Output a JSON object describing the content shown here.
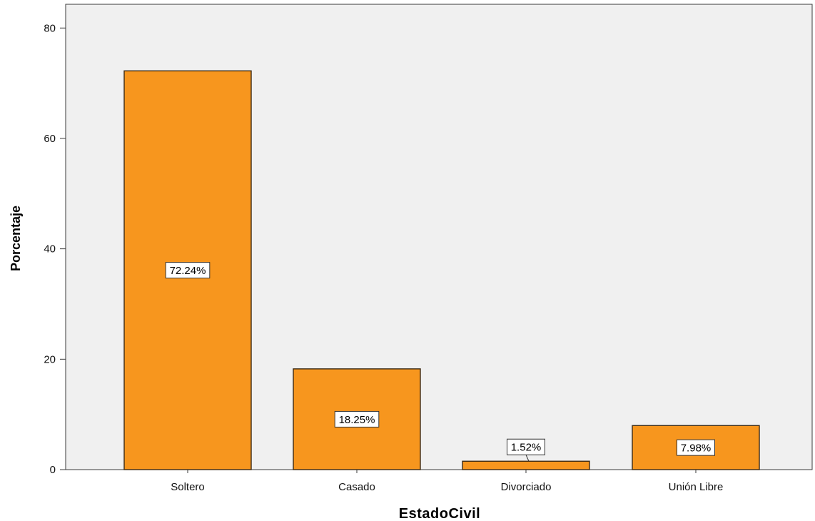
{
  "chart_data": {
    "type": "bar",
    "xlabel": "EstadoCivil",
    "ylabel": "Porcentaje",
    "categories": [
      "Soltero",
      "Casado",
      "Divorciado",
      "Unión Libre"
    ],
    "values": [
      72.24,
      18.25,
      1.52,
      7.98
    ],
    "value_labels": [
      "72.24%",
      "18.25%",
      "1.52%",
      "7.98%"
    ],
    "yticks": [
      0,
      20,
      40,
      60,
      80
    ],
    "ylim": [
      0,
      84.3
    ],
    "grid": false,
    "legend": "none",
    "colors": {
      "bar_fill": "#f7961e",
      "bar_stroke": "#3c2a14",
      "plot_background": "#f0f0f0",
      "axis": "#3a3a3a",
      "label_box_fill": "#ffffff",
      "label_box_stroke": "#333333"
    }
  }
}
